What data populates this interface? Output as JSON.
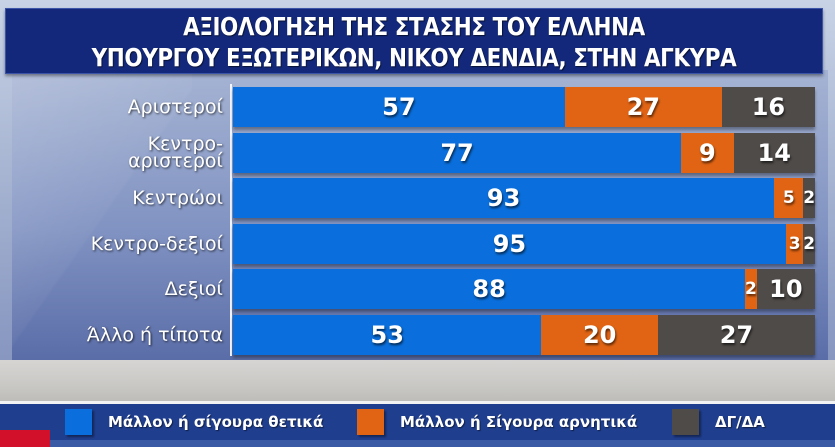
{
  "title": {
    "line1": "ΑΞΙΟΛΟΓΗΣΗ ΤΗΣ ΣΤΑΣΗΣ ΤΟΥ ΕΛΛΗΝΑ",
    "line2": "ΥΠΟΥΡΓΟΥ ΕΞΩΤΕΡΙΚΩΝ, ΝΙΚΟΥ ΔΕΝΔΙΑ, ΣΤΗΝ ΑΓΚΥΡΑ"
  },
  "colors": {
    "positive": "#0a6fdc",
    "negative": "#e06414",
    "dk_na": "#4f4b49",
    "title_bg": "#13287a",
    "legend_bg": "#1f3e8e"
  },
  "legend": [
    {
      "label": "Μάλλον ή σίγουρα θετικά",
      "color": "#0a6fdc"
    },
    {
      "label": "Μάλλον ή Σίγουρα αρνητικά",
      "color": "#e06414"
    },
    {
      "label": "ΔΓ/ΔΑ",
      "color": "#4f4b49"
    }
  ],
  "rows": [
    {
      "label": "Αριστεροί",
      "positive": "57",
      "negative": "27",
      "dk": "16"
    },
    {
      "label": "Κεντρο-\nαριστεροί",
      "positive": "77",
      "negative": "9",
      "dk": "14"
    },
    {
      "label": "Κεντρώοι",
      "positive": "93",
      "negative": "5",
      "dk": "2"
    },
    {
      "label": "Κεντρο-δεξιοί",
      "positive": "95",
      "negative": "3",
      "dk": "2"
    },
    {
      "label": "Δεξιοί",
      "positive": "88",
      "negative": "2",
      "dk": "10"
    },
    {
      "label": "Άλλο ή τίποτα",
      "positive": "53",
      "negative": "20",
      "dk": "27"
    }
  ],
  "chart_data": {
    "type": "bar",
    "orientation": "horizontal",
    "stacked": true,
    "title": "ΑΞΙΟΛΟΓΗΣΗ ΤΗΣ ΣΤΑΣΗΣ ΤΟΥ ΕΛΛΗΝΑ ΥΠΟΥΡΓΟΥ ΕΞΩΤΕΡΙΚΩΝ, ΝΙΚΟΥ ΔΕΝΔΙΑ, ΣΤΗΝ ΑΓΚΥΡΑ",
    "categories": [
      "Αριστεροί",
      "Κεντρο-αριστεροί",
      "Κεντρώοι",
      "Κεντρο-δεξιοί",
      "Δεξιοί",
      "Άλλο ή τίποτα"
    ],
    "series": [
      {
        "name": "Μάλλον ή σίγουρα θετικά",
        "color": "#0a6fdc",
        "values": [
          57,
          77,
          93,
          95,
          88,
          53
        ]
      },
      {
        "name": "Μάλλον ή Σίγουρα αρνητικά",
        "color": "#e06414",
        "values": [
          27,
          9,
          5,
          3,
          2,
          20
        ]
      },
      {
        "name": "ΔΓ/ΔΑ",
        "color": "#4f4b49",
        "values": [
          16,
          14,
          2,
          2,
          10,
          27
        ]
      }
    ],
    "xlabel": "",
    "ylabel": "",
    "xlim": [
      0,
      100
    ],
    "grid": false,
    "legend_position": "bottom",
    "data_labels": true
  }
}
